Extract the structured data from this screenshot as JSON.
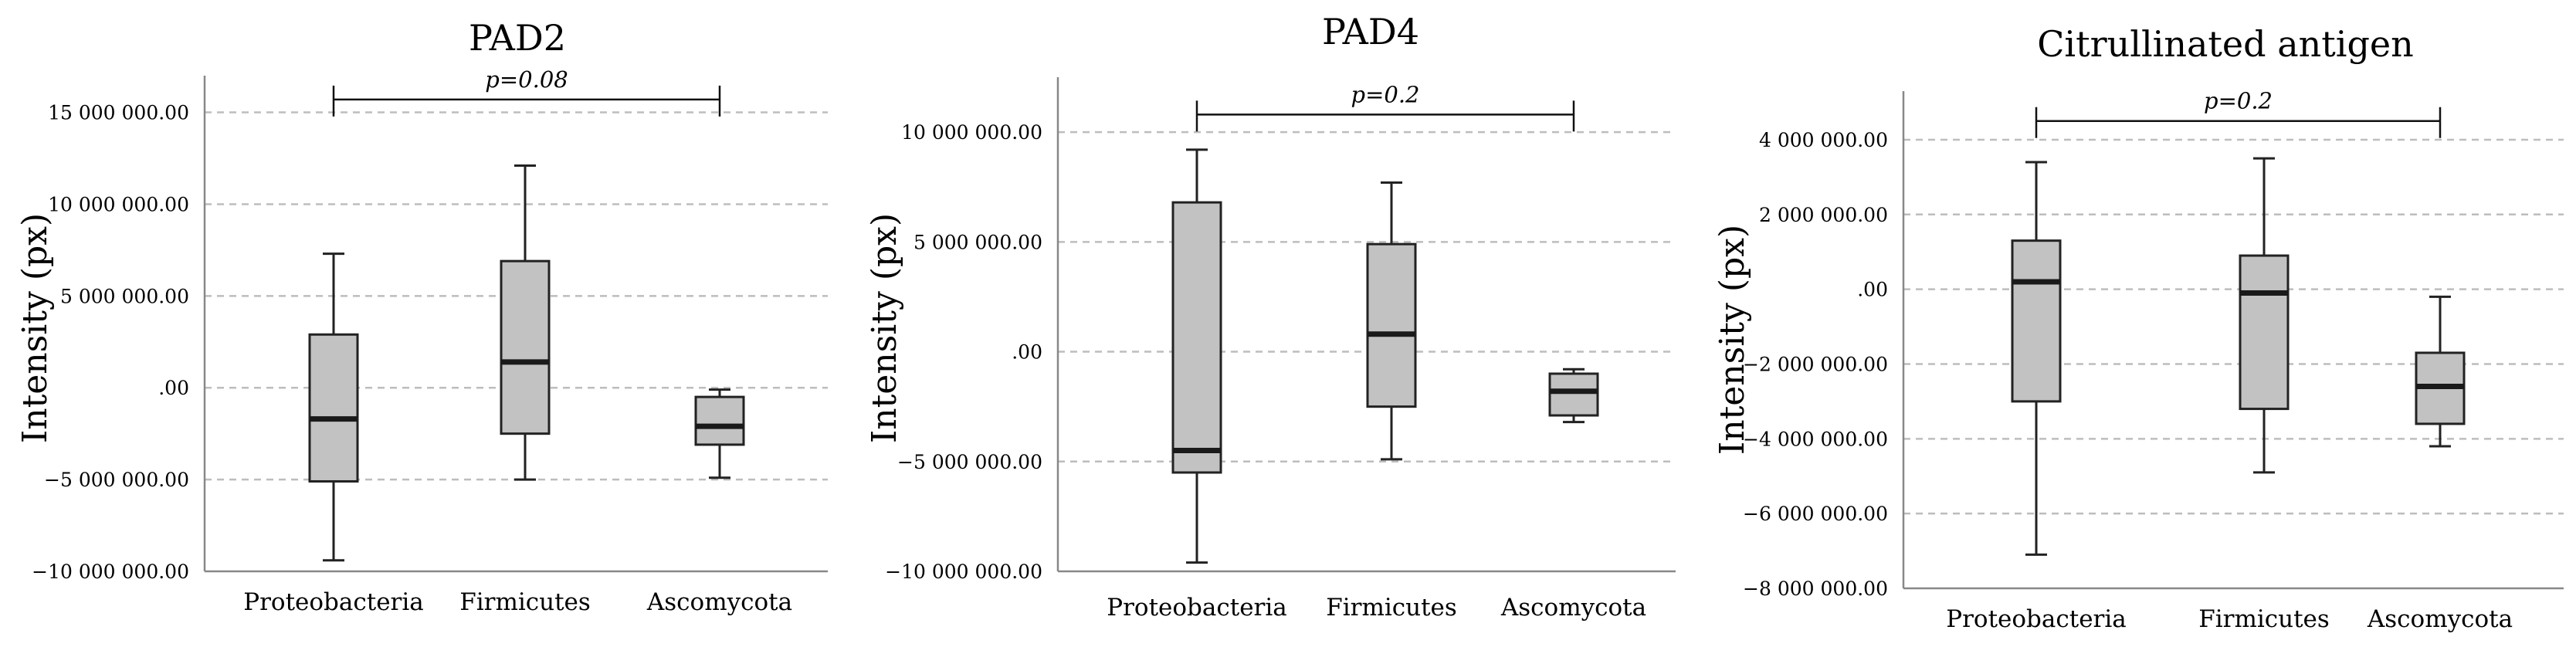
{
  "chart_data": [
    {
      "type": "boxplot",
      "title": "PAD2",
      "ylabel": "Intensity (px)",
      "categories": [
        "Proteobacteria",
        "Firmicutes",
        "Ascomycota"
      ],
      "ylim": [
        -10000000,
        17000000
      ],
      "yticks": [
        -10000000,
        -5000000,
        0,
        5000000,
        10000000,
        15000000
      ],
      "ytick_labels": [
        "−10 000 000.00",
        "−5 000 000.00",
        ".00",
        "5 000 000.00",
        "10 000 000.00",
        "15 000 000.00"
      ],
      "grid": "dashed-horizontal",
      "boxes": [
        {
          "category": "Proteobacteria",
          "whisker_low": -9400000,
          "q1": -5100000,
          "median": -1700000,
          "q3": 2900000,
          "whisker_high": 7300000
        },
        {
          "category": "Firmicutes",
          "whisker_low": -5000000,
          "q1": -2500000,
          "median": 1400000,
          "q3": 6900000,
          "whisker_high": 12100000
        },
        {
          "category": "Ascomycota",
          "whisker_low": -4900000,
          "q1": -3100000,
          "median": -2100000,
          "q3": -500000,
          "whisker_high": -100000
        }
      ],
      "bracket": {
        "from": "Proteobacteria",
        "to": "Ascomycota",
        "y": 15700000,
        "label": "p=0.08"
      }
    },
    {
      "type": "boxplot",
      "title": "PAD4",
      "ylabel": "Intensity (px)",
      "categories": [
        "Proteobacteria",
        "Firmicutes",
        "Ascomycota"
      ],
      "ylim": [
        -10000000,
        12500000
      ],
      "yticks": [
        -10000000,
        -5000000,
        0,
        5000000,
        10000000
      ],
      "ytick_labels": [
        "−10 000 000.00",
        "−5 000 000.00",
        ".00",
        "5 000 000.00",
        "10 000 000.00"
      ],
      "grid": "dashed-horizontal",
      "boxes": [
        {
          "category": "Proteobacteria",
          "whisker_low": -9600000,
          "q1": -5500000,
          "median": -4500000,
          "q3": 6800000,
          "whisker_high": 9200000
        },
        {
          "category": "Firmicutes",
          "whisker_low": -4900000,
          "q1": -2500000,
          "median": 800000,
          "q3": 4900000,
          "whisker_high": 7700000
        },
        {
          "category": "Ascomycota",
          "whisker_low": -3200000,
          "q1": -2900000,
          "median": -1800000,
          "q3": -1000000,
          "whisker_high": -800000
        }
      ],
      "bracket": {
        "from": "Proteobacteria",
        "to": "Ascomycota",
        "y": 10800000,
        "label": "p=0.2"
      }
    },
    {
      "type": "boxplot",
      "title": "Citrullinated antigen",
      "ylabel": "Intensity (px)",
      "categories": [
        "Proteobacteria",
        "Firmicutes",
        "Ascomycota"
      ],
      "ylim": [
        -8000000,
        5300000
      ],
      "yticks": [
        -8000000,
        -6000000,
        -4000000,
        -2000000,
        0,
        2000000,
        4000000
      ],
      "ytick_labels": [
        "−8 000 000.00",
        "−6 000 000.00",
        "−4 000 000.00",
        "−2 000 000.00",
        ".00",
        "2 000 000.00",
        "4 000 000.00"
      ],
      "grid": "dashed-horizontal",
      "boxes": [
        {
          "category": "Proteobacteria",
          "whisker_low": -7100000,
          "q1": -3000000,
          "median": 200000,
          "q3": 1300000,
          "whisker_high": 3400000
        },
        {
          "category": "Firmicutes",
          "whisker_low": -4900000,
          "q1": -3200000,
          "median": -100000,
          "q3": 900000,
          "whisker_high": 3500000
        },
        {
          "category": "Ascomycota",
          "whisker_low": -4200000,
          "q1": -3600000,
          "median": -2600000,
          "q3": -1700000,
          "whisker_high": -200000
        }
      ],
      "bracket": {
        "from": "Proteobacteria",
        "to": "Ascomycota",
        "y": 4500000,
        "label": "p=0.2"
      }
    }
  ],
  "colors": {
    "box_fill": "#c2c2c2",
    "box_stroke": "#222222",
    "grid": "#bdbdbd",
    "axis": "#888888"
  }
}
